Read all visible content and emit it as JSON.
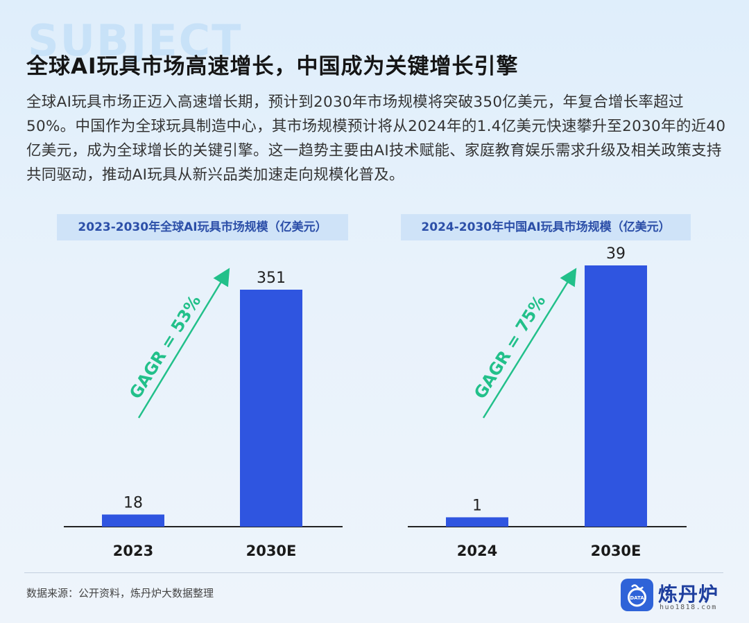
{
  "background_word": "SUBJECT",
  "title": "全球AI玩具市场高速增长，中国成为关键增长引擎",
  "intro": "全球AI玩具市场正迈入高速增长期，预计到2030年市场规模将突破350亿美元，年复合增长率超过50%。中国作为全球玩具制造中心，其市场规模预计将从2024年的1.4亿美元快速攀升至2030年的近40亿美元，成为全球增长的关键引擎。这一趋势主要由AI技术赋能、家庭教育娱乐需求升级及相关政策支持共同驱动，推动AI玩具从新兴品类加速走向规模化普及。",
  "colors": {
    "bar": "#2f55e0",
    "arrow": "#22c08a",
    "title_bg": "#cfe3f8",
    "title_text": "#2c4fa8"
  },
  "chart_data": [
    {
      "type": "bar",
      "title": "2023-2030年全球AI玩具市场规模（亿美元）",
      "categories": [
        "2023",
        "2030E"
      ],
      "values": [
        18,
        351
      ],
      "data_labels": [
        "18",
        "351"
      ],
      "annotation": "GAGR = 53%",
      "ylim": [
        0,
        351
      ]
    },
    {
      "type": "bar",
      "title": "2024-2030年中国AI玩具市场规模（亿美元）",
      "categories": [
        "2024",
        "2030E"
      ],
      "values": [
        1.4,
        39
      ],
      "data_labels": [
        "1",
        "39"
      ],
      "annotation": "GAGR = 75%",
      "ylim": [
        0,
        39
      ]
    }
  ],
  "source": "数据来源：公开资料，炼丹炉大数据整理",
  "logo": {
    "name": "炼丹炉",
    "url": "huo1818.com",
    "badge_text": "DATA"
  }
}
